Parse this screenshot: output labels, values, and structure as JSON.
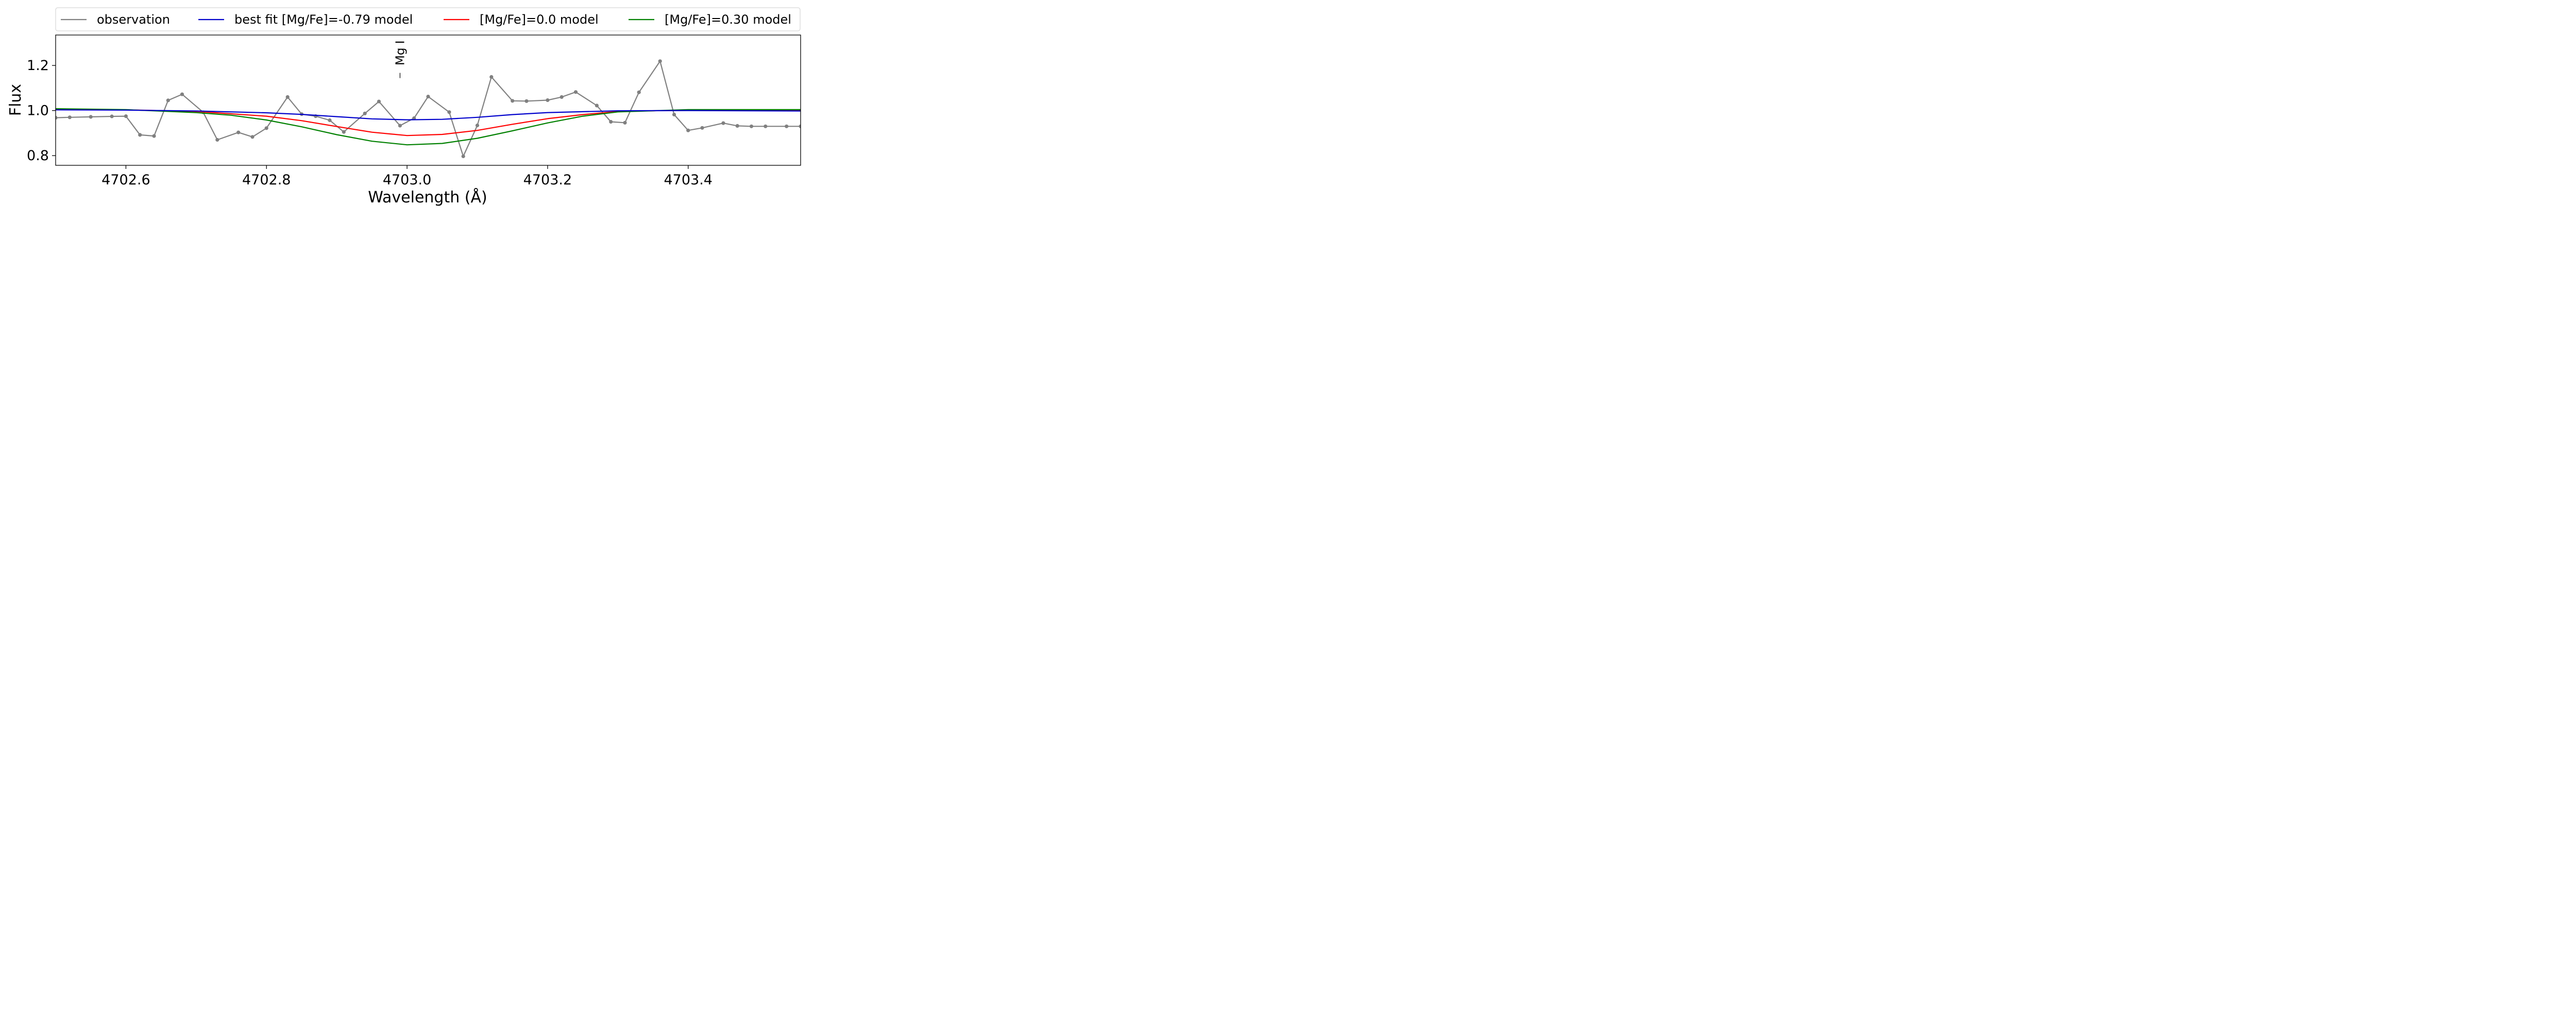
{
  "chart_data": {
    "type": "line",
    "xlabel": "Wavelength (Å)",
    "ylabel": "Flux",
    "xlim": [
      4702.5,
      4703.56
    ],
    "ylim": [
      0.757,
      1.335
    ],
    "grid": false,
    "legend_position": "top",
    "x_ticks": [
      4702.6,
      4702.8,
      4703.0,
      4703.2,
      4703.4
    ],
    "x_tick_labels": [
      "4702.6",
      "4702.8",
      "4703.0",
      "4703.2",
      "4703.4"
    ],
    "y_ticks": [
      0.8,
      1.0,
      1.2
    ],
    "y_tick_labels": [
      "0.8",
      "1.0",
      "1.2"
    ],
    "annotation": {
      "text": "Mg I",
      "x": 4702.99,
      "mark_y": [
        1.144,
        1.167
      ]
    },
    "series": [
      {
        "name": "observation",
        "color": "#808080",
        "markers": true,
        "x": [
          4702.48,
          4702.5,
          4702.52,
          4702.55,
          4702.58,
          4702.6,
          4702.62,
          4702.64,
          4702.66,
          4702.68,
          4702.71,
          4702.73,
          4702.76,
          4702.78,
          4702.8,
          4702.83,
          4702.85,
          4702.87,
          4702.89,
          4702.91,
          4702.94,
          4702.96,
          4702.99,
          4703.01,
          4703.03,
          4703.06,
          4703.08,
          4703.1,
          4703.12,
          4703.15,
          4703.17,
          4703.2,
          4703.22,
          4703.24,
          4703.27,
          4703.29,
          4703.31,
          4703.33,
          4703.36,
          4703.38,
          4703.4,
          4703.42,
          4703.45,
          4703.47,
          4703.49,
          4703.51,
          4703.54,
          4703.56
        ],
        "y": [
          0.965,
          0.968,
          0.97,
          0.972,
          0.974,
          0.975,
          0.892,
          0.887,
          1.045,
          1.072,
          0.992,
          0.87,
          0.903,
          0.883,
          0.922,
          1.06,
          0.984,
          0.975,
          0.957,
          0.905,
          0.987,
          1.04,
          0.933,
          0.966,
          1.062,
          0.993,
          0.797,
          0.934,
          1.149,
          1.043,
          1.042,
          1.046,
          1.06,
          1.082,
          1.022,
          0.95,
          0.946,
          1.081,
          1.219,
          0.982,
          0.912,
          0.923,
          0.944,
          0.932,
          0.93,
          0.93,
          0.93,
          0.93
        ]
      },
      {
        "name": "best fit [Mg/Fe]=-0.79 model",
        "color": "#0000cc",
        "x": [
          4702.5,
          4702.6,
          4702.7,
          4702.8,
          4702.85,
          4702.9,
          4702.95,
          4703.0,
          4703.05,
          4703.1,
          4703.15,
          4703.2,
          4703.3,
          4703.4,
          4703.56
        ],
        "y": [
          1.003,
          1.002,
          0.998,
          0.99,
          0.983,
          0.973,
          0.963,
          0.959,
          0.961,
          0.97,
          0.982,
          0.991,
          0.999,
          1.0,
          0.998
        ]
      },
      {
        "name": "[Mg/Fe]=0.0 model",
        "color": "#ff0000",
        "x": [
          4702.5,
          4702.6,
          4702.7,
          4702.8,
          4702.85,
          4702.9,
          4702.95,
          4703.0,
          4703.05,
          4703.1,
          4703.15,
          4703.2,
          4703.25,
          4703.3,
          4703.4,
          4703.56
        ],
        "y": [
          1.006,
          1.003,
          0.996,
          0.975,
          0.955,
          0.929,
          0.904,
          0.889,
          0.894,
          0.912,
          0.939,
          0.964,
          0.982,
          0.996,
          1.002,
          1.001
        ]
      },
      {
        "name": "[Mg/Fe]=0.30 model",
        "color": "#008000",
        "x": [
          4702.5,
          4702.6,
          4702.7,
          4702.75,
          4702.8,
          4702.85,
          4702.9,
          4702.95,
          4703.0,
          4703.05,
          4703.1,
          4703.15,
          4703.2,
          4703.25,
          4703.3,
          4703.4,
          4703.56
        ],
        "y": [
          1.008,
          1.004,
          0.991,
          0.979,
          0.958,
          0.928,
          0.893,
          0.864,
          0.848,
          0.854,
          0.877,
          0.91,
          0.945,
          0.975,
          0.994,
          1.004,
          1.004
        ]
      }
    ]
  }
}
